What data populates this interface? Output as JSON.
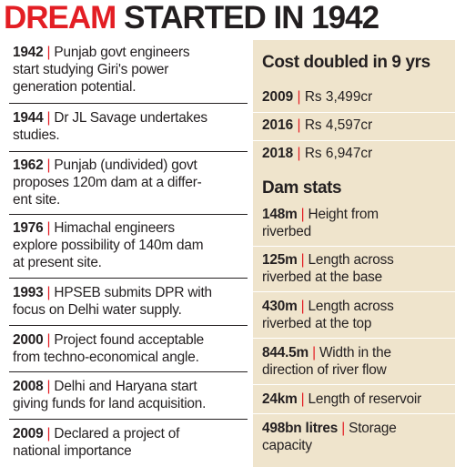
{
  "title": {
    "part1": "DREAM",
    "part2": "STARTED IN 1942"
  },
  "timeline": [
    {
      "year": "1942",
      "line1": "Punjab govt engineers",
      "line2": "start studying Giri's power",
      "line3": "generation potential."
    },
    {
      "year": "1944",
      "line1": "Dr JL Savage undertakes",
      "line2": "studies.",
      "line3": ""
    },
    {
      "year": "1962",
      "line1": "Punjab (undivided) govt",
      "line2": "proposes 120m dam at a differ-",
      "line3": "ent site."
    },
    {
      "year": "1976",
      "line1": "Himachal engineers",
      "line2": "explore possibility of 140m dam",
      "line3": "at present site."
    },
    {
      "year": "1993",
      "line1": "HPSEB submits DPR with",
      "line2": "focus on Delhi water supply.",
      "line3": ""
    },
    {
      "year": "2000",
      "line1": "Project found acceptable",
      "line2": "from techno-economical angle.",
      "line3": ""
    },
    {
      "year": "2008",
      "line1": "Delhi and Haryana start",
      "line2": "giving funds for land acquisition.",
      "line3": ""
    },
    {
      "year": "2009",
      "line1": "Declared a project of",
      "line2": "national importance",
      "line3": ""
    }
  ],
  "cost": {
    "heading": "Cost doubled in 9 yrs",
    "items": [
      {
        "year": "2009",
        "amount": "Rs 3,499cr"
      },
      {
        "year": "2016",
        "amount": "Rs 4,597cr"
      },
      {
        "year": "2018",
        "amount": "Rs 6,947cr"
      }
    ]
  },
  "stats": {
    "heading": "Dam stats",
    "items": [
      {
        "value": "148m",
        "line1": "Height from",
        "line2": "riverbed"
      },
      {
        "value": "125m",
        "line1": "Length across",
        "line2": "riverbed at the base"
      },
      {
        "value": "430m",
        "line1": "Length across",
        "line2": "riverbed at the top"
      },
      {
        "value": "844.5m",
        "line1": "Width in the",
        "line2": "direction of river flow"
      },
      {
        "value": "24km",
        "line1": "Length of reservoir",
        "line2": ""
      },
      {
        "value": "498bn litres",
        "line1": "Storage",
        "line2": "capacity"
      }
    ]
  },
  "separator": "|",
  "colors": {
    "accent": "#e31e24",
    "text": "#231f20",
    "panel": "#efe4cc"
  }
}
